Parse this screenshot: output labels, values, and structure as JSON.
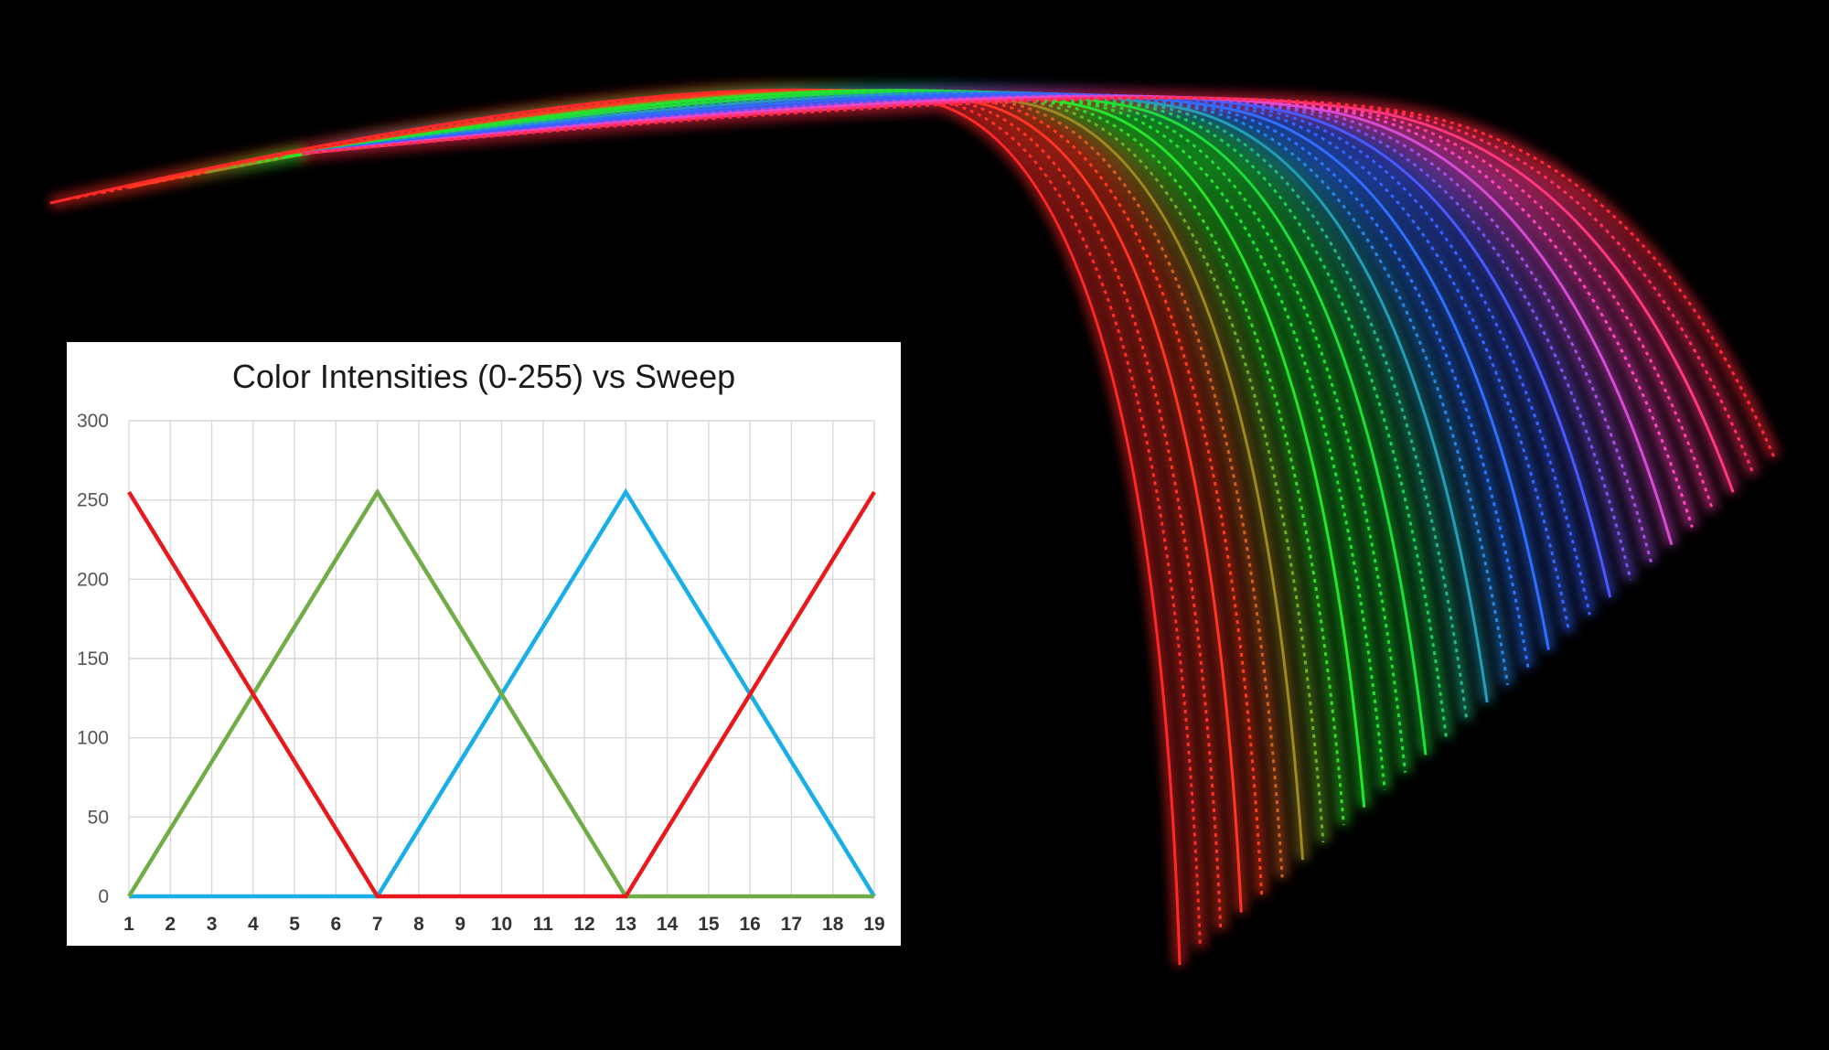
{
  "chart_data": {
    "type": "line",
    "title": "Color Intensities (0-255) vs Sweep",
    "xlabel": "",
    "ylabel": "",
    "x": [
      1,
      2,
      3,
      4,
      5,
      6,
      7,
      8,
      9,
      10,
      11,
      12,
      13,
      14,
      15,
      16,
      17,
      18,
      19
    ],
    "yticks": [
      0,
      50,
      100,
      150,
      200,
      250,
      300
    ],
    "ylim": [
      0,
      300
    ],
    "grid": true,
    "legend": "none",
    "series": [
      {
        "color": "#e8191c",
        "values": [
          255,
          212.5,
          170,
          127.5,
          85,
          42.5,
          0,
          0,
          0,
          0,
          0,
          0,
          0,
          42.5,
          85,
          127.5,
          170,
          212.5,
          255
        ]
      },
      {
        "color": "#70ad47",
        "values": [
          0,
          42.5,
          85,
          127.5,
          170,
          212.5,
          255,
          212.5,
          170,
          127.5,
          85,
          42.5,
          0,
          0,
          0,
          0,
          0,
          0,
          0
        ]
      },
      {
        "color": "#1aaee6",
        "values": [
          0,
          0,
          0,
          0,
          0,
          0,
          0,
          42.5,
          85,
          127.5,
          170,
          212.5,
          255,
          212.5,
          170,
          127.5,
          85,
          42.5,
          0
        ]
      }
    ]
  },
  "background": {
    "colors": [
      "#ff2020",
      "#22dd22",
      "#3377ff",
      "#ff44cc"
    ]
  }
}
